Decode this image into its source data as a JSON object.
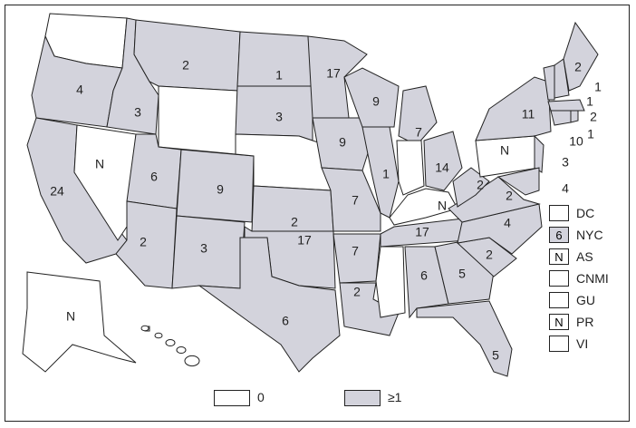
{
  "colors": {
    "zero": "#ffffff",
    "one_plus": "#d3d3dc",
    "border": "#222222"
  },
  "states": {
    "WA": "",
    "OR": "4",
    "CA": "24",
    "NV": "N",
    "ID": "3",
    "MT": "2",
    "WY": "",
    "UT": "6",
    "CO": "9",
    "AZ": "2",
    "NM": "3",
    "ND": "1",
    "SD": "3",
    "NE": "",
    "KS": "2",
    "OK": "17",
    "TX": "6",
    "MN": "17",
    "IA": "9",
    "MO": "7",
    "AR": "7",
    "LA": "2",
    "WI": "9",
    "IL": "1",
    "MI": "7",
    "IN": "",
    "OH": "14",
    "KY": "N",
    "TN": "17",
    "MS": "",
    "AL": "6",
    "GA": "5",
    "FL": "5",
    "SC": "2",
    "NC": "4",
    "VA": "2",
    "WV": "2",
    "PA": "N",
    "NY": "11",
    "NJ": "3",
    "MDDE": "4",
    "VT": "1",
    "NH": "1",
    "ME": "2",
    "MA": "2",
    "CT": "10",
    "RI": "1",
    "AK": "N",
    "HI": ""
  },
  "territories": [
    {
      "label": "DC",
      "value": "",
      "shaded": false
    },
    {
      "label": "NYC",
      "value": "6",
      "shaded": true
    },
    {
      "label": "AS",
      "value": "N",
      "shaded": false
    },
    {
      "label": "CNMI",
      "value": "",
      "shaded": false
    },
    {
      "label": "GU",
      "value": "",
      "shaded": false
    },
    {
      "label": "PR",
      "value": "N",
      "shaded": false
    },
    {
      "label": "VI",
      "value": "",
      "shaded": false
    }
  ],
  "legend": {
    "zero": "0",
    "one_plus": "≥1"
  }
}
